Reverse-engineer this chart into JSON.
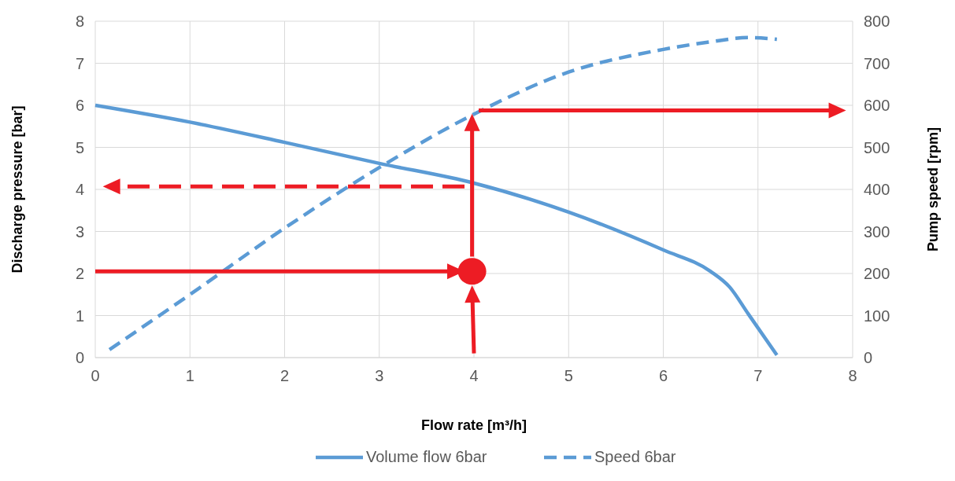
{
  "chart_data": {
    "type": "line",
    "xlabel": "Flow rate [m³/h]",
    "ylabel": "Discharge pressure [bar]",
    "y2label": "Pump speed [rpm]",
    "xlim": [
      0,
      8
    ],
    "xticks": [
      0,
      1,
      2,
      3,
      4,
      5,
      6,
      7,
      8
    ],
    "ylim": [
      0,
      8
    ],
    "yticks": [
      0,
      1,
      2,
      3,
      4,
      5,
      6,
      7,
      8
    ],
    "y2lim": [
      0,
      800
    ],
    "y2ticks": [
      0,
      100,
      200,
      300,
      400,
      500,
      600,
      700,
      800
    ],
    "grid": true,
    "legend": "bottom",
    "marker": "none",
    "series": [
      {
        "name": "Volume flow 6bar",
        "color": "#5b9bd5",
        "line_style": "solid",
        "x": [
          0,
          1,
          2,
          3,
          4,
          5,
          6,
          6.5,
          6.7,
          6.9,
          7.2
        ],
        "values": [
          6,
          5.6,
          5.12,
          4.62,
          4.15,
          3.46,
          2.56,
          2.05,
          1.68,
          1.03,
          0.06
        ]
      },
      {
        "name": "Speed 6bar",
        "color": "#5b9bd5",
        "line_style": "dashed",
        "axis": "y2",
        "x": [
          0.15,
          1,
          2,
          3,
          4,
          5,
          6,
          6.5,
          6.9,
          7.2
        ],
        "values": [
          19,
          150,
          308,
          452,
          579,
          679,
          733,
          751,
          761,
          757
        ]
      }
    ]
  }
}
